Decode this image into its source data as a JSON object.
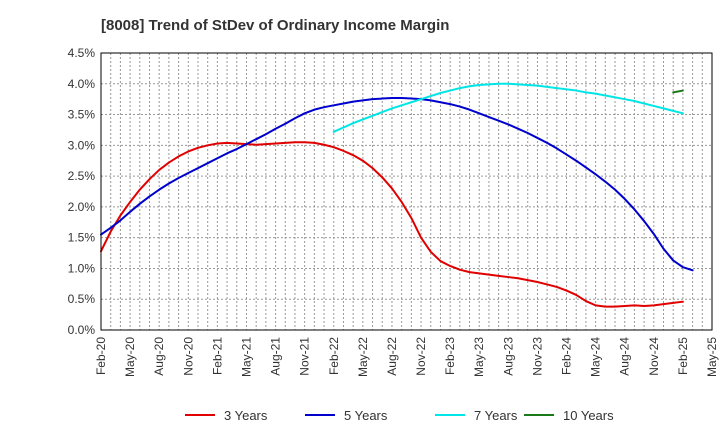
{
  "chart_data": {
    "type": "line",
    "title": "[8008]  Trend of StDev of Ordinary Income Margin",
    "xlabel": "",
    "ylabel": "",
    "x_start": "2020-02",
    "x_step_months": 3,
    "x_ticks": [
      "Feb-20",
      "May-20",
      "Aug-20",
      "Nov-20",
      "Feb-21",
      "May-21",
      "Aug-21",
      "Nov-21",
      "Feb-22",
      "May-22",
      "Aug-22",
      "Nov-22",
      "Feb-23",
      "May-23",
      "Aug-23",
      "Nov-23",
      "Feb-24",
      "May-24",
      "Aug-24",
      "Nov-24",
      "Feb-25",
      "May-25"
    ],
    "y_ticks": [
      "0.0%",
      "0.5%",
      "1.0%",
      "1.5%",
      "2.0%",
      "2.5%",
      "3.0%",
      "3.5%",
      "4.0%",
      "4.5%"
    ],
    "ylim": [
      0,
      4.5
    ],
    "y_unit": "%",
    "grid": true,
    "legend_position": "bottom",
    "series": [
      {
        "name": "3 Years",
        "color": "#e00000",
        "points": [
          [
            "2020-02",
            1.28
          ],
          [
            "2020-03",
            1.6
          ],
          [
            "2020-04",
            1.86
          ],
          [
            "2020-05",
            2.08
          ],
          [
            "2020-06",
            2.28
          ],
          [
            "2020-07",
            2.45
          ],
          [
            "2020-08",
            2.6
          ],
          [
            "2020-09",
            2.72
          ],
          [
            "2020-10",
            2.82
          ],
          [
            "2020-11",
            2.9
          ],
          [
            "2020-12",
            2.96
          ],
          [
            "2021-01",
            3.0
          ],
          [
            "2021-02",
            3.03
          ],
          [
            "2021-03",
            3.04
          ],
          [
            "2021-04",
            3.03
          ],
          [
            "2021-05",
            3.02
          ],
          [
            "2021-06",
            3.01
          ],
          [
            "2021-07",
            3.02
          ],
          [
            "2021-08",
            3.03
          ],
          [
            "2021-09",
            3.04
          ],
          [
            "2021-10",
            3.05
          ],
          [
            "2021-11",
            3.05
          ],
          [
            "2021-12",
            3.04
          ],
          [
            "2022-01",
            3.01
          ],
          [
            "2022-02",
            2.97
          ],
          [
            "2022-03",
            2.91
          ],
          [
            "2022-04",
            2.84
          ],
          [
            "2022-05",
            2.75
          ],
          [
            "2022-06",
            2.63
          ],
          [
            "2022-07",
            2.48
          ],
          [
            "2022-08",
            2.3
          ],
          [
            "2022-09",
            2.08
          ],
          [
            "2022-10",
            1.82
          ],
          [
            "2022-11",
            1.5
          ],
          [
            "2022-12",
            1.27
          ],
          [
            "2023-01",
            1.12
          ],
          [
            "2023-02",
            1.04
          ],
          [
            "2023-03",
            0.98
          ],
          [
            "2023-04",
            0.94
          ],
          [
            "2023-05",
            0.92
          ],
          [
            "2023-06",
            0.9
          ],
          [
            "2023-07",
            0.88
          ],
          [
            "2023-08",
            0.86
          ],
          [
            "2023-09",
            0.84
          ],
          [
            "2023-10",
            0.81
          ],
          [
            "2023-11",
            0.78
          ],
          [
            "2023-12",
            0.74
          ],
          [
            "2024-01",
            0.7
          ],
          [
            "2024-02",
            0.64
          ],
          [
            "2024-03",
            0.57
          ],
          [
            "2024-04",
            0.47
          ],
          [
            "2024-05",
            0.4
          ],
          [
            "2024-06",
            0.38
          ],
          [
            "2024-07",
            0.38
          ],
          [
            "2024-08",
            0.39
          ],
          [
            "2024-09",
            0.4
          ],
          [
            "2024-10",
            0.39
          ],
          [
            "2024-11",
            0.4
          ],
          [
            "2024-12",
            0.42
          ],
          [
            "2025-01",
            0.44
          ],
          [
            "2025-02",
            0.46
          ]
        ]
      },
      {
        "name": "5 Years",
        "color": "#0000cc",
        "points": [
          [
            "2020-02",
            1.55
          ],
          [
            "2020-03",
            1.66
          ],
          [
            "2020-04",
            1.78
          ],
          [
            "2020-05",
            1.92
          ],
          [
            "2020-06",
            2.05
          ],
          [
            "2020-07",
            2.17
          ],
          [
            "2020-08",
            2.28
          ],
          [
            "2020-09",
            2.38
          ],
          [
            "2020-10",
            2.47
          ],
          [
            "2020-11",
            2.55
          ],
          [
            "2020-12",
            2.63
          ],
          [
            "2021-01",
            2.71
          ],
          [
            "2021-02",
            2.79
          ],
          [
            "2021-03",
            2.87
          ],
          [
            "2021-04",
            2.94
          ],
          [
            "2021-05",
            3.02
          ],
          [
            "2021-06",
            3.1
          ],
          [
            "2021-07",
            3.18
          ],
          [
            "2021-08",
            3.27
          ],
          [
            "2021-09",
            3.35
          ],
          [
            "2021-10",
            3.44
          ],
          [
            "2021-11",
            3.52
          ],
          [
            "2021-12",
            3.58
          ],
          [
            "2022-01",
            3.62
          ],
          [
            "2022-02",
            3.65
          ],
          [
            "2022-03",
            3.68
          ],
          [
            "2022-04",
            3.71
          ],
          [
            "2022-05",
            3.73
          ],
          [
            "2022-06",
            3.75
          ],
          [
            "2022-07",
            3.76
          ],
          [
            "2022-08",
            3.77
          ],
          [
            "2022-09",
            3.77
          ],
          [
            "2022-10",
            3.76
          ],
          [
            "2022-11",
            3.75
          ],
          [
            "2022-12",
            3.73
          ],
          [
            "2023-01",
            3.7
          ],
          [
            "2023-02",
            3.67
          ],
          [
            "2023-03",
            3.63
          ],
          [
            "2023-04",
            3.58
          ],
          [
            "2023-05",
            3.52
          ],
          [
            "2023-06",
            3.46
          ],
          [
            "2023-07",
            3.4
          ],
          [
            "2023-08",
            3.34
          ],
          [
            "2023-09",
            3.27
          ],
          [
            "2023-10",
            3.2
          ],
          [
            "2023-11",
            3.12
          ],
          [
            "2023-12",
            3.04
          ],
          [
            "2024-01",
            2.95
          ],
          [
            "2024-02",
            2.85
          ],
          [
            "2024-03",
            2.75
          ],
          [
            "2024-04",
            2.64
          ],
          [
            "2024-05",
            2.53
          ],
          [
            "2024-06",
            2.41
          ],
          [
            "2024-07",
            2.28
          ],
          [
            "2024-08",
            2.13
          ],
          [
            "2024-09",
            1.96
          ],
          [
            "2024-10",
            1.77
          ],
          [
            "2024-11",
            1.56
          ],
          [
            "2024-12",
            1.32
          ],
          [
            "2025-01",
            1.13
          ],
          [
            "2025-02",
            1.02
          ],
          [
            "2025-03",
            0.97
          ]
        ]
      },
      {
        "name": "7 Years",
        "color": "#00e5e5",
        "points": [
          [
            "2022-02",
            3.22
          ],
          [
            "2022-03",
            3.29
          ],
          [
            "2022-04",
            3.36
          ],
          [
            "2022-05",
            3.42
          ],
          [
            "2022-06",
            3.48
          ],
          [
            "2022-07",
            3.54
          ],
          [
            "2022-08",
            3.6
          ],
          [
            "2022-09",
            3.65
          ],
          [
            "2022-10",
            3.7
          ],
          [
            "2022-11",
            3.75
          ],
          [
            "2022-12",
            3.8
          ],
          [
            "2023-01",
            3.85
          ],
          [
            "2023-02",
            3.89
          ],
          [
            "2023-03",
            3.93
          ],
          [
            "2023-04",
            3.96
          ],
          [
            "2023-05",
            3.98
          ],
          [
            "2023-06",
            3.99
          ],
          [
            "2023-07",
            4.0
          ],
          [
            "2023-08",
            4.0
          ],
          [
            "2023-09",
            3.99
          ],
          [
            "2023-10",
            3.98
          ],
          [
            "2023-11",
            3.97
          ],
          [
            "2023-12",
            3.95
          ],
          [
            "2024-01",
            3.93
          ],
          [
            "2024-02",
            3.91
          ],
          [
            "2024-03",
            3.89
          ],
          [
            "2024-04",
            3.86
          ],
          [
            "2024-05",
            3.84
          ],
          [
            "2024-06",
            3.81
          ],
          [
            "2024-07",
            3.78
          ],
          [
            "2024-08",
            3.75
          ],
          [
            "2024-09",
            3.72
          ],
          [
            "2024-10",
            3.68
          ],
          [
            "2024-11",
            3.64
          ],
          [
            "2024-12",
            3.6
          ],
          [
            "2025-01",
            3.56
          ],
          [
            "2025-02",
            3.52
          ]
        ]
      },
      {
        "name": "10 Years",
        "color": "#1a7a1a",
        "points": [
          [
            "2025-01",
            3.86
          ],
          [
            "2025-02",
            3.89
          ]
        ]
      }
    ]
  }
}
